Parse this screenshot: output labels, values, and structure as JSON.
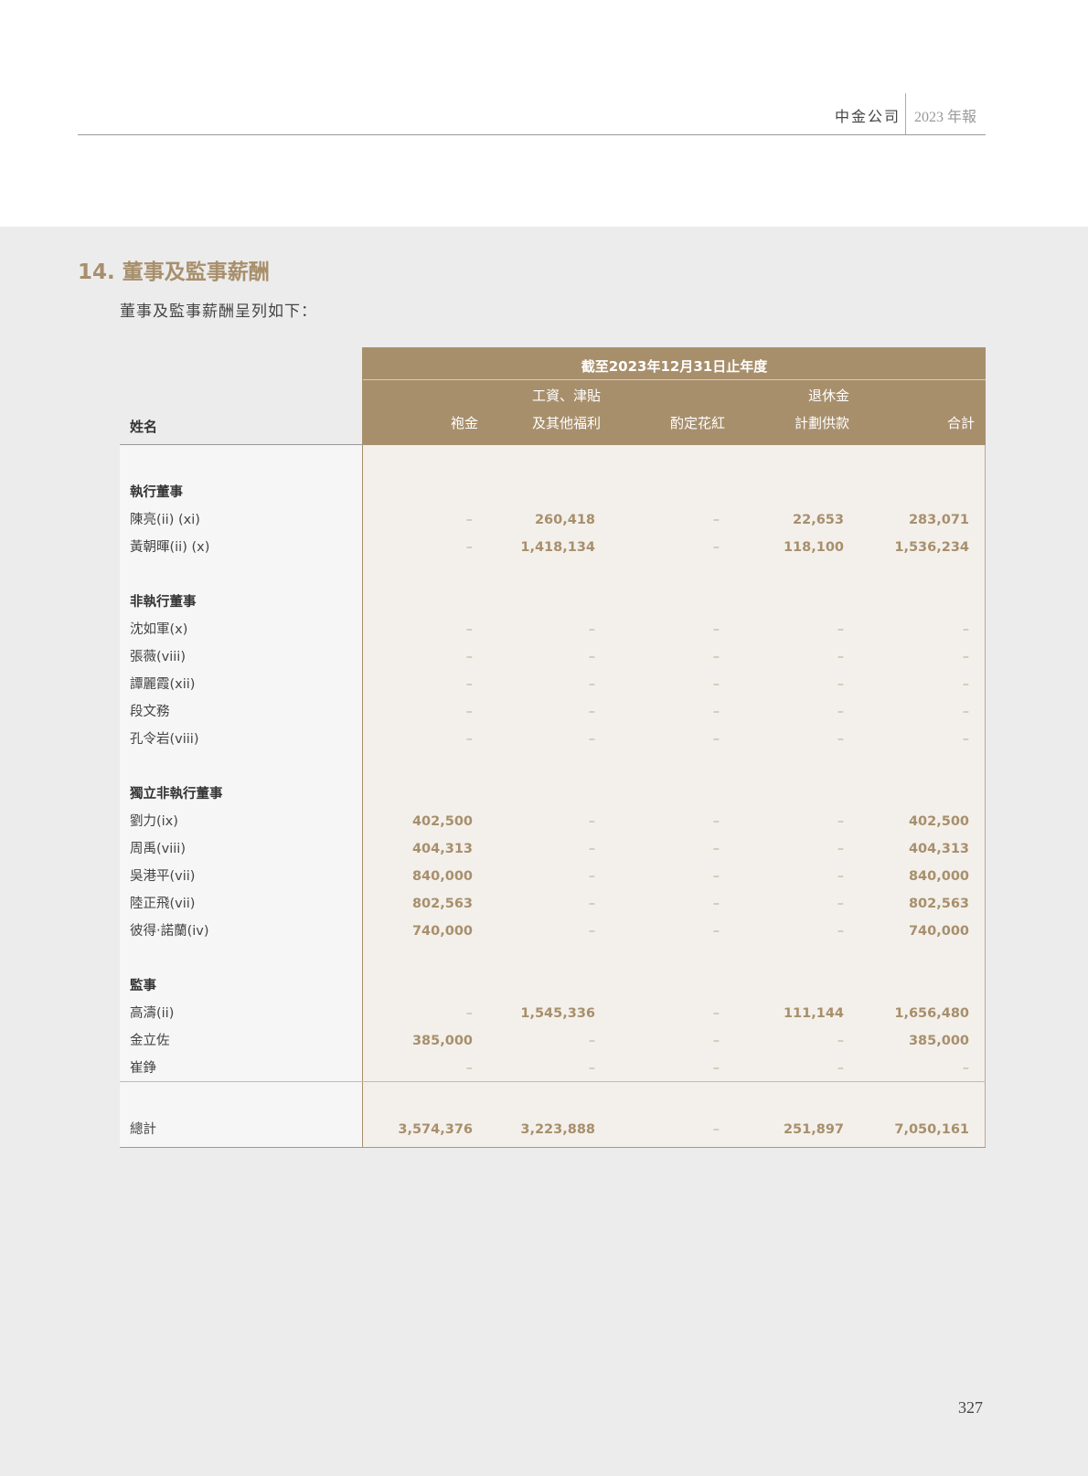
{
  "header": {
    "company": "中金公司",
    "report": "2023 年報"
  },
  "section_title": "14. 董事及監事薪酬",
  "intro": "董事及監事薪酬呈列如下：",
  "table": {
    "period_header": "截至2023年12月31日止年度",
    "name_header": "姓名",
    "columns": [
      {
        "line1": "",
        "line2": "袍金"
      },
      {
        "line1": "工資、津貼",
        "line2": "及其他福利"
      },
      {
        "line1": "",
        "line2": "酌定花紅"
      },
      {
        "line1": "退休金",
        "line2": "計劃供款"
      },
      {
        "line1": "",
        "line2": "合計"
      }
    ],
    "rows": [
      {
        "type": "section",
        "name": "執行董事"
      },
      {
        "type": "row",
        "name": "陳亮(ii) (xi)",
        "values": [
          "–",
          "260,418",
          "–",
          "22,653",
          "283,071"
        ]
      },
      {
        "type": "row",
        "name": "黃朝暉(ii) (x)",
        "values": [
          "–",
          "1,418,134",
          "–",
          "118,100",
          "1,536,234"
        ]
      },
      {
        "type": "spacer"
      },
      {
        "type": "section",
        "name": "非執行董事"
      },
      {
        "type": "row",
        "name": "沈如軍(x)",
        "values": [
          "–",
          "–",
          "–",
          "–",
          "–"
        ]
      },
      {
        "type": "row",
        "name": "張薇(viii)",
        "values": [
          "–",
          "–",
          "–",
          "–",
          "–"
        ]
      },
      {
        "type": "row",
        "name": "譚麗霞(xii)",
        "values": [
          "–",
          "–",
          "–",
          "–",
          "–"
        ]
      },
      {
        "type": "row",
        "name": "段文務",
        "values": [
          "–",
          "–",
          "–",
          "–",
          "–"
        ]
      },
      {
        "type": "row",
        "name": "孔令岩(viii)",
        "values": [
          "–",
          "–",
          "–",
          "–",
          "–"
        ]
      },
      {
        "type": "spacer"
      },
      {
        "type": "section",
        "name": "獨立非執行董事"
      },
      {
        "type": "row",
        "name": "劉力(ix)",
        "values": [
          "402,500",
          "–",
          "–",
          "–",
          "402,500"
        ]
      },
      {
        "type": "row",
        "name": "周禹(viii)",
        "values": [
          "404,313",
          "–",
          "–",
          "–",
          "404,313"
        ]
      },
      {
        "type": "row",
        "name": "吳港平(vii)",
        "values": [
          "840,000",
          "–",
          "–",
          "–",
          "840,000"
        ]
      },
      {
        "type": "row",
        "name": "陸正飛(vii)",
        "values": [
          "802,563",
          "–",
          "–",
          "–",
          "802,563"
        ]
      },
      {
        "type": "row",
        "name": "彼得‧諾蘭(iv)",
        "values": [
          "740,000",
          "–",
          "–",
          "–",
          "740,000"
        ]
      },
      {
        "type": "spacer"
      },
      {
        "type": "section",
        "name": "監事"
      },
      {
        "type": "row",
        "name": "高濤(ii)",
        "values": [
          "–",
          "1,545,336",
          "–",
          "111,144",
          "1,656,480"
        ]
      },
      {
        "type": "row",
        "name": "金立佐",
        "values": [
          "385,000",
          "–",
          "–",
          "–",
          "385,000"
        ]
      },
      {
        "type": "row",
        "name": "崔錚",
        "values": [
          "–",
          "–",
          "–",
          "–",
          "–"
        ]
      }
    ],
    "total": {
      "name": "總計",
      "values": [
        "3,574,376",
        "3,223,888",
        "–",
        "251,897",
        "7,050,161"
      ]
    }
  },
  "page_number": "327",
  "colors": {
    "accent": "#a88f6c",
    "data_bg": "#f3f0eb",
    "page_bg": "#ececec"
  }
}
